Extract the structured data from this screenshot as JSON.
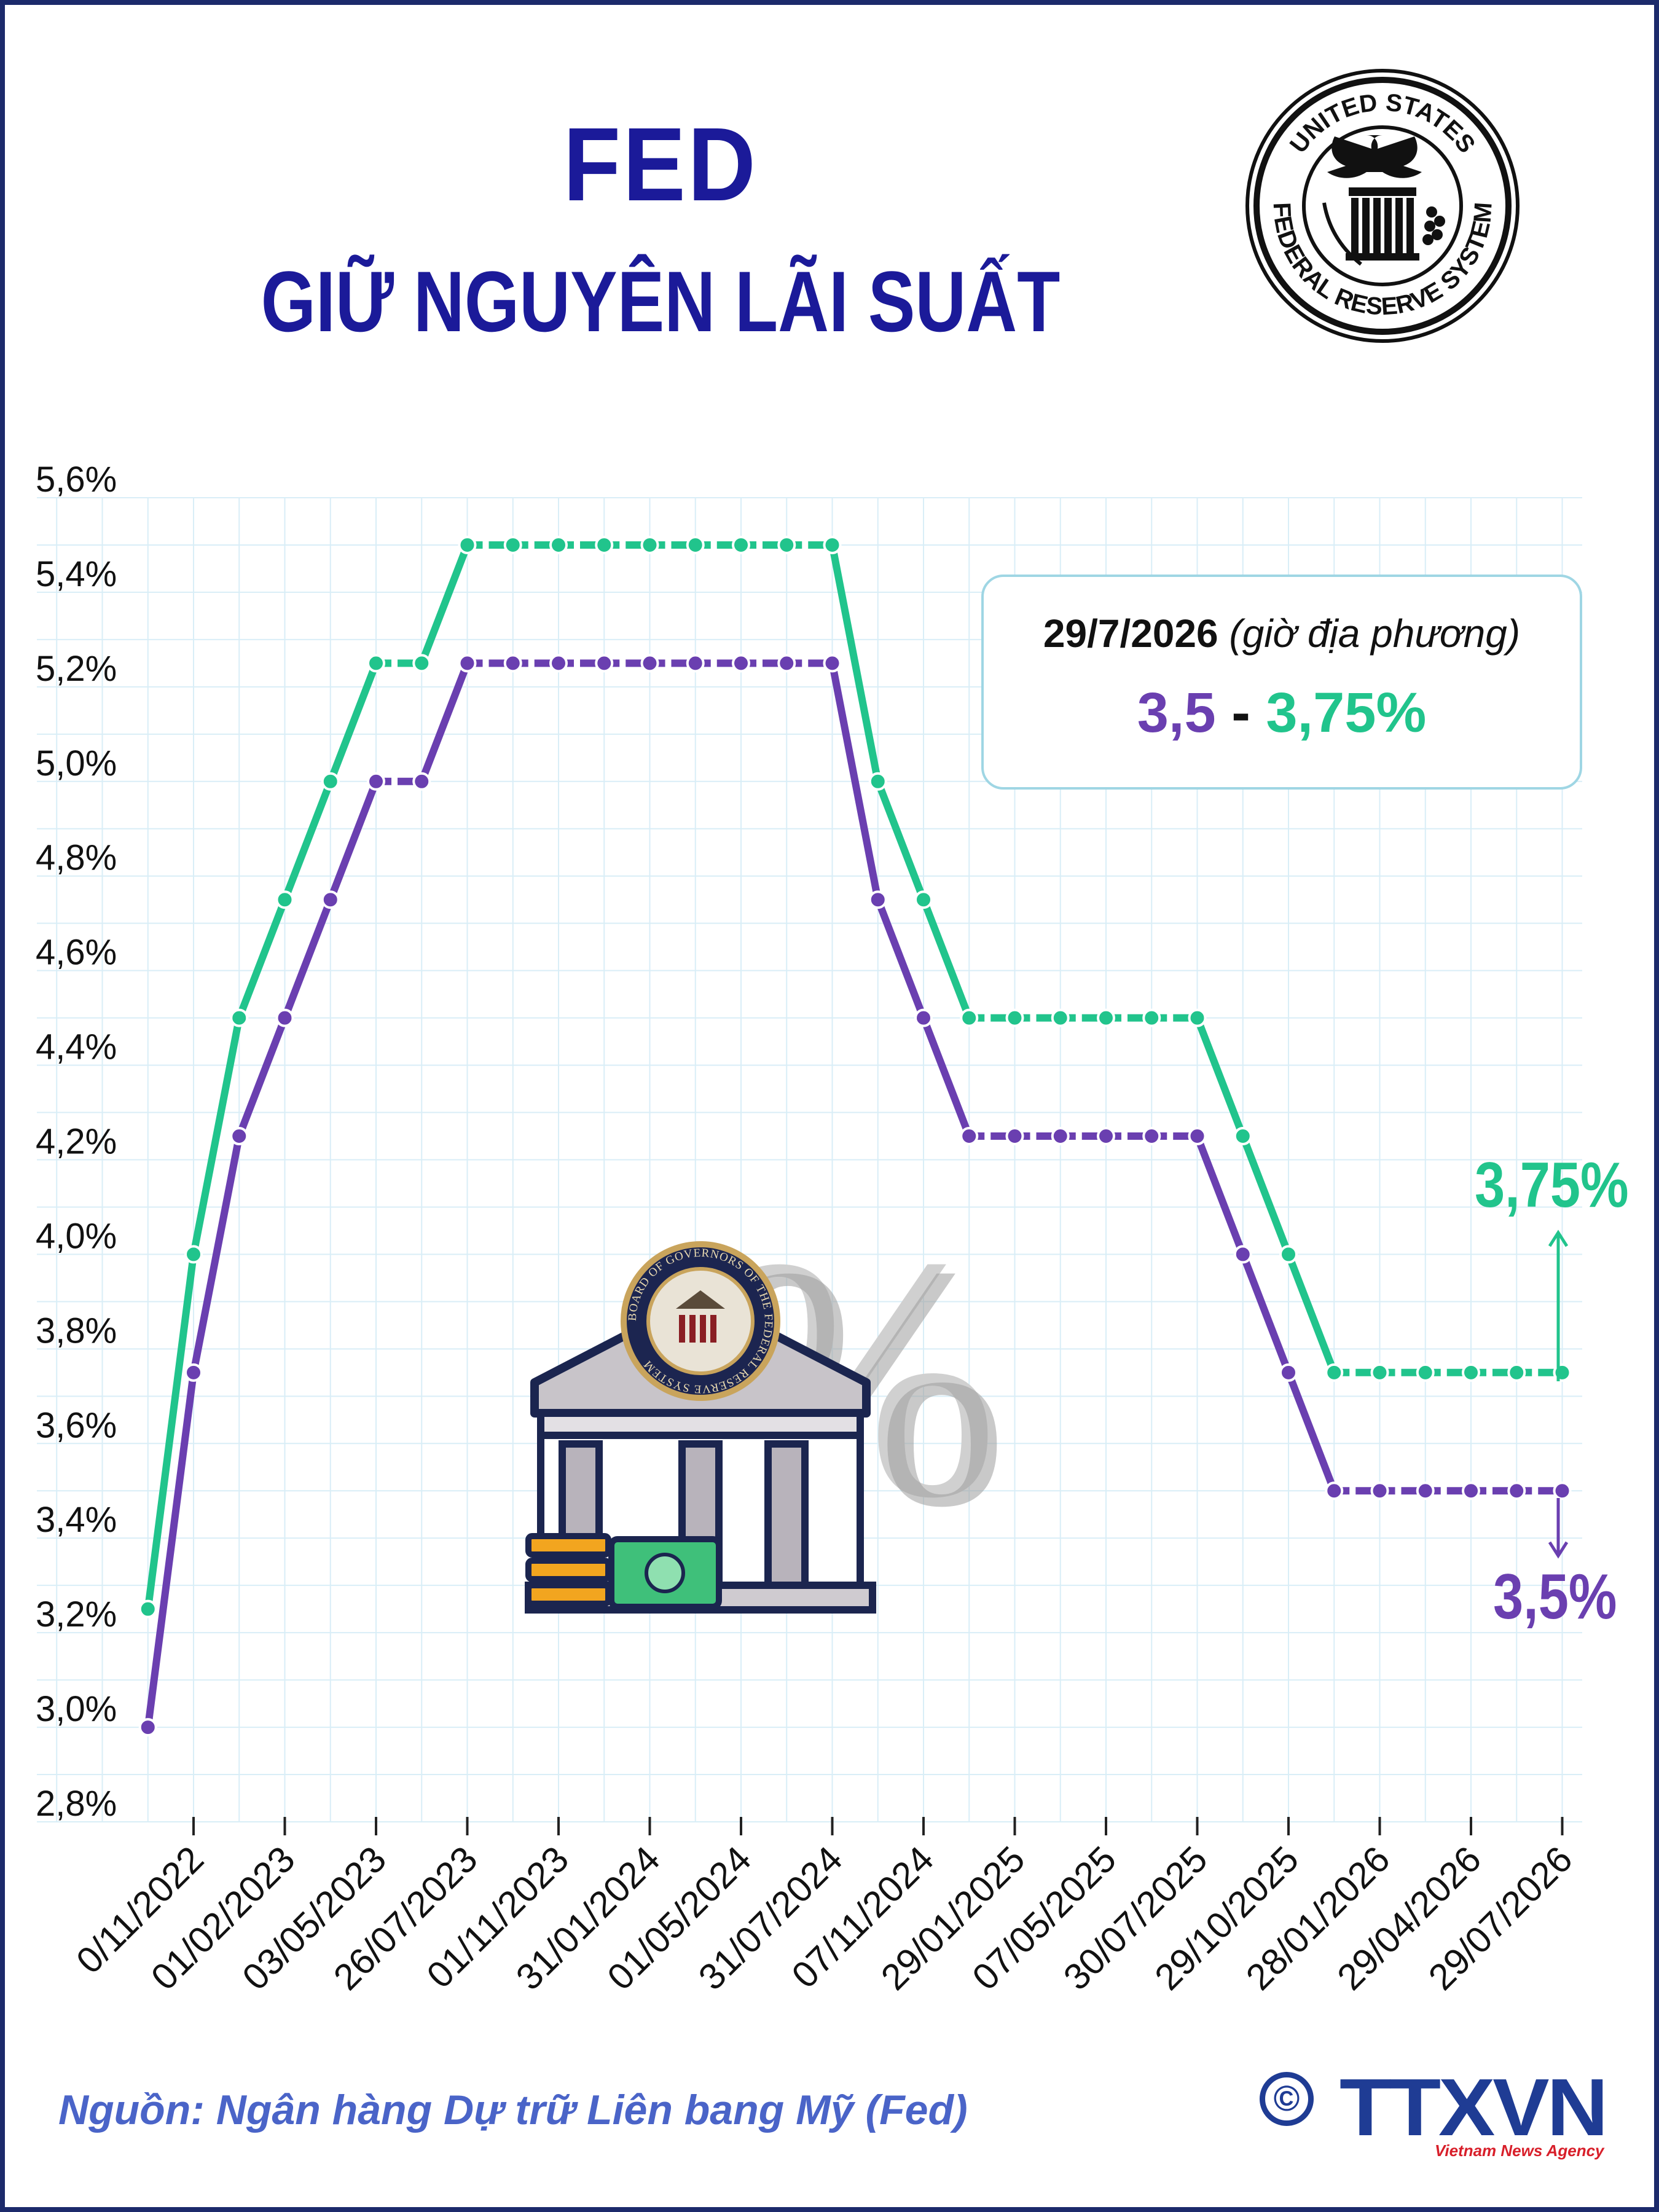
{
  "header": {
    "title": "FED",
    "subtitle": "GIỮ NGUYÊN LÃI SUẤT"
  },
  "seal": {
    "text_top": "UNITED STATES",
    "text_bottom": "FEDERAL RESERVE SYSTEM"
  },
  "illustration": {
    "seal_text": "BOARD OF GOVERNORS OF THE FEDERAL RESERVE SYSTEM",
    "percent_symbol": "%"
  },
  "callout": {
    "date": "29/7/2026",
    "date_note": "(giờ địa phương)",
    "low": "3,5",
    "dash": "-",
    "high": "3,75%"
  },
  "end_labels": {
    "high": "3,75%",
    "low": "3,5%"
  },
  "footer": {
    "source": "Nguồn: Ngân hàng Dự trữ Liên bang Mỹ (Fed)",
    "copyright_symbol": "©",
    "logo": "TTXVN",
    "logo_sub": "Vietnam News Agency"
  },
  "colors": {
    "title": "#1b1a99",
    "upper": "#21c48c",
    "lower": "#6a3fb0",
    "grid": "#d9eef7"
  },
  "chart_data": {
    "type": "line",
    "ylim": [
      2.8,
      5.6
    ],
    "yticks": [
      "5,6%",
      "5,4%",
      "5,2%",
      "5,0%",
      "4,8%",
      "4,6%",
      "4,4%",
      "4,2%",
      "4,0%",
      "3,8%",
      "3,6%",
      "3,4%",
      "3,2%",
      "3,0%",
      "2,8%"
    ],
    "ytick_values": [
      5.6,
      5.4,
      5.2,
      5.0,
      4.8,
      4.6,
      4.4,
      4.2,
      4.0,
      3.8,
      3.6,
      3.4,
      3.2,
      3.0,
      2.8
    ],
    "categories": [
      "0/11/2022",
      "01/02/2023",
      "03/05/2023",
      "26/07/2023",
      "01/11/2023",
      "31/01/2024",
      "01/05/2024",
      "31/07/2024",
      "07/11/2024",
      "29/01/2025",
      "07/05/2025",
      "30/07/2025",
      "29/10/2025",
      "28/01/2026",
      "29/04/2026",
      "29/07/2026"
    ],
    "grid": true,
    "series": [
      {
        "key": "upper",
        "x": [
          -0.5,
          0,
          0.5,
          1,
          1.5,
          2,
          2.5,
          3,
          3.5,
          4,
          4.5,
          5,
          5.5,
          6,
          6.5,
          7,
          7.5,
          8,
          8.5,
          9,
          9.5,
          10,
          10.5,
          11,
          11.5,
          12,
          12.5,
          13,
          13.5,
          14,
          14.5,
          15
        ],
        "values": [
          3.25,
          4.0,
          4.5,
          4.75,
          5.0,
          5.25,
          5.25,
          5.5,
          5.5,
          5.5,
          5.5,
          5.5,
          5.5,
          5.5,
          5.5,
          5.5,
          5.0,
          4.75,
          4.5,
          4.5,
          4.5,
          4.5,
          4.5,
          4.5,
          4.25,
          4.0,
          3.75,
          3.75,
          3.75,
          3.75,
          3.75,
          3.75
        ]
      },
      {
        "key": "lower",
        "x": [
          -0.5,
          0,
          0.5,
          1,
          1.5,
          2,
          2.5,
          3,
          3.5,
          4,
          4.5,
          5,
          5.5,
          6,
          6.5,
          7,
          7.5,
          8,
          8.5,
          9,
          9.5,
          10,
          10.5,
          11,
          11.5,
          12,
          12.5,
          13,
          13.5,
          14,
          14.5,
          15
        ],
        "values": [
          3.0,
          3.75,
          4.25,
          4.5,
          4.75,
          5.0,
          5.0,
          5.25,
          5.25,
          5.25,
          5.25,
          5.25,
          5.25,
          5.25,
          5.25,
          5.25,
          4.75,
          4.5,
          4.25,
          4.25,
          4.25,
          4.25,
          4.25,
          4.25,
          4.0,
          3.75,
          3.5,
          3.5,
          3.5,
          3.5,
          3.5,
          3.5
        ]
      }
    ]
  }
}
